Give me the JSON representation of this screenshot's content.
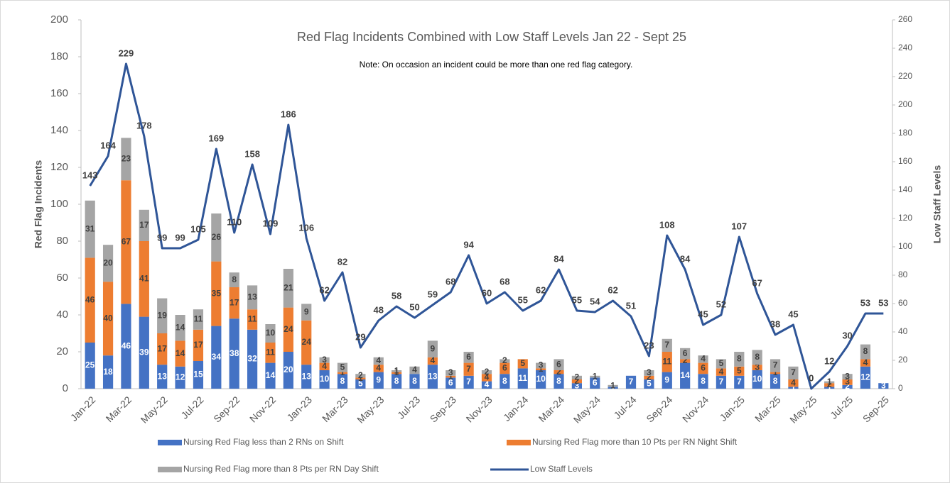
{
  "chart_data": {
    "type": "bar_line",
    "title": "Red Flag Incidents Combined with Low Staff Levels  Jan 22 - Sept 25",
    "subtitle": "Note: On occasion an incident could be more than one red flag category.",
    "ylabel": "Red Flag Incidents",
    "y2label": "Low Staff Levels",
    "categories": [
      "Jan-22",
      null,
      "Mar-22",
      null,
      "May-22",
      null,
      "Jul-22",
      null,
      "Sep-22",
      null,
      "Nov-22",
      null,
      "Jan-23",
      null,
      "Mar-23",
      null,
      "May-23",
      null,
      "Jul-23",
      null,
      "Sep-23",
      null,
      "Nov-23",
      null,
      "Jan-24",
      null,
      "Mar-24",
      null,
      "May-24",
      null,
      "Jul-24",
      null,
      "Sep-24",
      null,
      "Nov-24",
      null,
      "Jan-25",
      null,
      "Mar-25",
      null,
      "May-25",
      null,
      "Jul-25",
      null,
      "Sep-25"
    ],
    "series": [
      {
        "name": "Nursing Red Flag less than 2 RNs on Shift",
        "color": "#4472c4",
        "type": "bar",
        "values": [
          25,
          18,
          46,
          39,
          13,
          12,
          15,
          34,
          38,
          32,
          14,
          20,
          13,
          10,
          8,
          5,
          9,
          8,
          8,
          13,
          6,
          7,
          4,
          8,
          11,
          10,
          8,
          3,
          6,
          1,
          7,
          5,
          9,
          14,
          8,
          7,
          7,
          10,
          8,
          1,
          0,
          1,
          2,
          12,
          3
        ]
      },
      {
        "name": "Nursing Red Flag more than 10 Pts per RN Night Shift",
        "color": "#ed7d31",
        "type": "bar",
        "values": [
          46,
          40,
          67,
          41,
          17,
          14,
          17,
          35,
          17,
          11,
          11,
          24,
          24,
          4,
          1,
          1,
          4,
          1,
          0,
          4,
          1,
          7,
          4,
          6,
          5,
          1,
          2,
          2,
          0,
          0,
          0,
          2,
          11,
          2,
          6,
          4,
          5,
          3,
          1,
          4,
          0,
          2,
          3,
          4,
          0
        ]
      },
      {
        "name": "Nursing Red Flag more than 8 Pts per RN Day Shift",
        "color": "#a5a5a5",
        "type": "bar",
        "values": [
          31,
          20,
          23,
          17,
          19,
          14,
          11,
          26,
          8,
          13,
          10,
          21,
          9,
          3,
          5,
          2,
          4,
          1,
          4,
          9,
          3,
          6,
          2,
          2,
          0,
          3,
          6,
          2,
          1,
          1,
          0,
          3,
          7,
          6,
          4,
          5,
          8,
          8,
          7,
          7,
          0,
          1,
          3,
          8,
          0
        ]
      },
      {
        "name": "Low Staff Levels",
        "color": "#2f5597",
        "type": "line",
        "axis": "y2",
        "values": [
          143,
          164,
          229,
          178,
          99,
          99,
          105,
          169,
          110,
          158,
          109,
          186,
          106,
          62,
          82,
          29,
          48,
          58,
          50,
          59,
          68,
          94,
          60,
          68,
          55,
          62,
          84,
          55,
          54,
          62,
          51,
          23,
          108,
          84,
          45,
          52,
          107,
          67,
          38,
          45,
          0,
          12,
          30,
          53,
          53
        ]
      }
    ],
    "ylim": [
      0,
      200
    ],
    "yticks": [
      0,
      20,
      40,
      60,
      80,
      100,
      120,
      140,
      160,
      180,
      200
    ],
    "y2lim": [
      0,
      260
    ],
    "y2ticks": [
      0,
      20,
      40,
      60,
      80,
      100,
      120,
      140,
      160,
      180,
      200,
      220,
      240,
      260
    ]
  }
}
